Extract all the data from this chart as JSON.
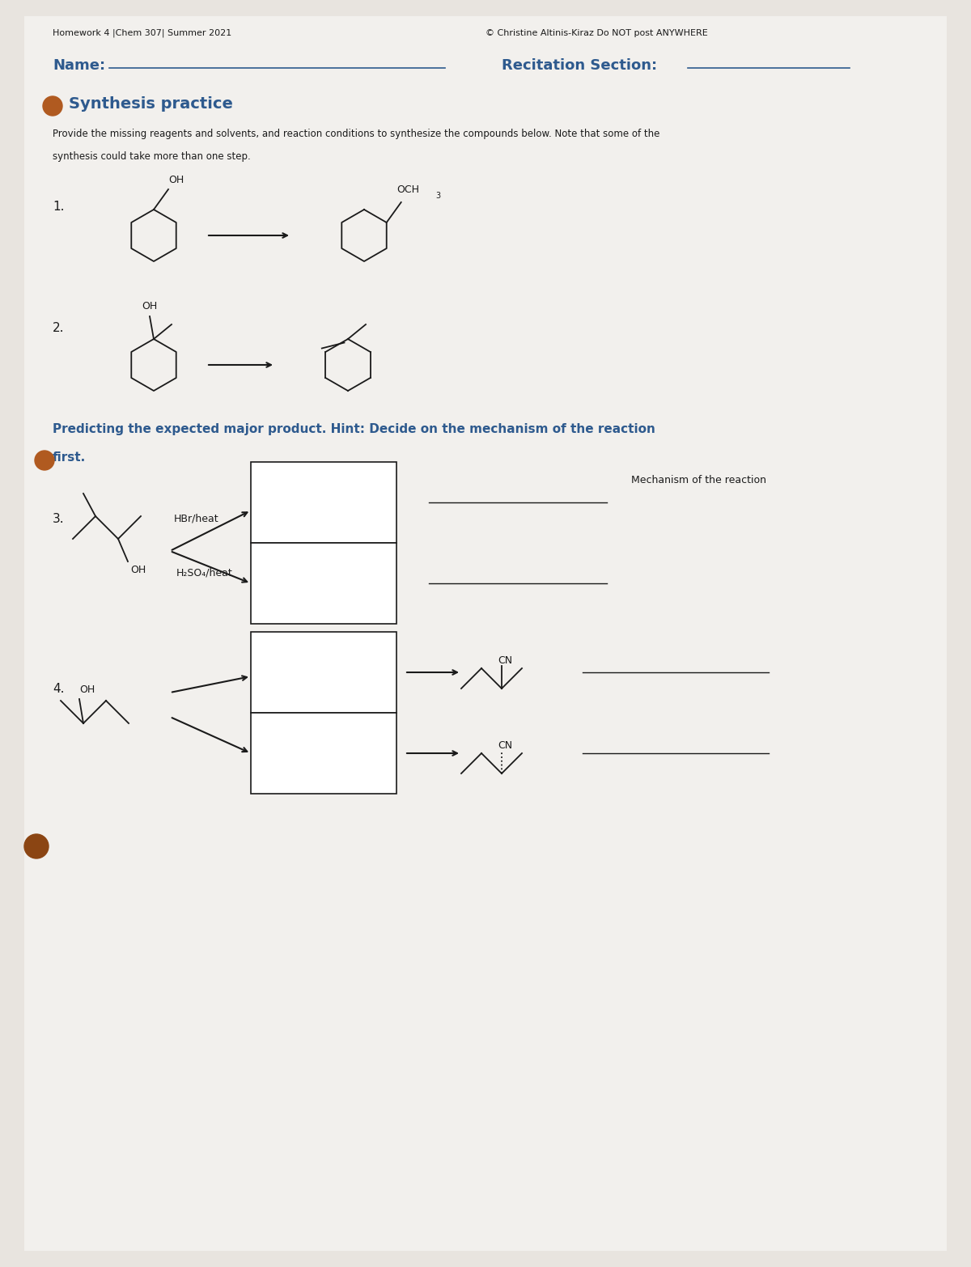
{
  "bg_color": "#e8e4df",
  "paper_color": "#f0eeeb",
  "header_left": "Homework 4 |Chem 307| Summer 2021",
  "header_right": "© Christine Altinis-Kiraz Do NOT post ANYWHERE",
  "name_label": "Name:",
  "recitation_label": "Recitation Section:",
  "section_title": "Synthesis practice",
  "section_desc1": "Provide the missing reagents and solvents, and reaction conditions to synthesize the compounds below. Note that some of the",
  "section_desc2": "synthesis could take more than one step.",
  "predicting_text": "Predicting the expected major product. Hint: Decide on the mechanism of the reaction",
  "first_text": "first.",
  "mechanism_label": "Mechanism of the reaction",
  "q1_label": "1.",
  "q2_label": "2.",
  "q3_label": "3.",
  "q4_label": "4.",
  "hbr_label": "HBr/heat",
  "h2so4_label": "H₂SO₄/heat",
  "text_color": "#2e5a8e",
  "black_color": "#1a1a1a",
  "gray_color": "#888888",
  "light_gray": "#d0d0d0"
}
